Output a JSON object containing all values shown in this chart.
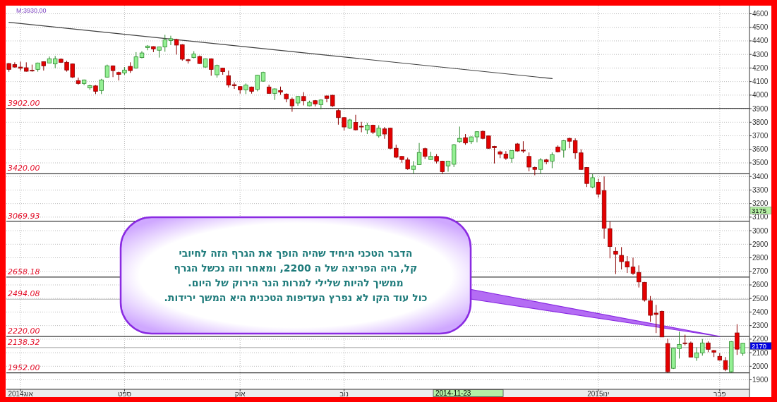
{
  "chart_data": {
    "type": "candlestick",
    "categories": [
      null,
      null,
      "אוג2014",
      null,
      null,
      null,
      null,
      null,
      null,
      null,
      null,
      null,
      null,
      null,
      null,
      null,
      null,
      null,
      null,
      null,
      "ספט",
      null,
      null,
      null,
      null,
      null,
      null,
      null,
      null,
      null,
      null,
      null,
      null,
      null,
      null,
      null,
      null,
      null,
      null,
      null,
      "אוק",
      null,
      null,
      null,
      null,
      null,
      null,
      null,
      null,
      null,
      null,
      null,
      null,
      null,
      null,
      null,
      null,
      null,
      "נוב",
      null,
      null,
      null,
      null,
      null,
      null,
      null,
      null,
      null,
      null,
      null,
      null,
      null,
      null,
      null,
      null,
      null,
      null,
      null,
      null,
      null,
      null,
      null,
      null,
      null,
      null,
      null,
      null,
      null,
      null,
      null,
      null,
      null,
      null,
      null,
      null,
      null,
      null,
      null,
      null,
      null,
      null,
      null,
      "ינו2015",
      null,
      null,
      null,
      null,
      null,
      null,
      null,
      null,
      null,
      null,
      null,
      null,
      null,
      null,
      null,
      null,
      null,
      null,
      null,
      null,
      "פבר",
      null,
      null,
      null,
      null
    ],
    "ohlc": [
      [
        4233,
        4237,
        4172,
        4190
      ],
      [
        4225,
        4242,
        4202,
        4207
      ],
      [
        4207,
        4247,
        4181,
        4198
      ],
      [
        4202,
        4242,
        4173,
        4176
      ],
      [
        4183,
        4225,
        4173,
        4178
      ],
      [
        4190,
        4240,
        4173,
        4237
      ],
      [
        4247,
        4249,
        4181,
        4216
      ],
      [
        4237,
        4285,
        4235,
        4268
      ],
      [
        4230,
        4289,
        4199,
        4268
      ],
      [
        4265,
        4271,
        4237,
        4242
      ],
      [
        4242,
        4254,
        4173,
        4185
      ],
      [
        4230,
        4232,
        4126,
        4133
      ],
      [
        4107,
        4129,
        4077,
        4086
      ],
      [
        4086,
        4115,
        4074,
        4112
      ],
      [
        4053,
        4077,
        4039,
        4070
      ],
      [
        4068,
        4074,
        4008,
        4028
      ],
      [
        4034,
        4120,
        4008,
        4112
      ],
      [
        4133,
        4225,
        4129,
        4216
      ],
      [
        4216,
        4219,
        4133,
        4181
      ],
      [
        4167,
        4173,
        4108,
        4153
      ],
      [
        4164,
        4207,
        4150,
        4185
      ],
      [
        4212,
        4242,
        4164,
        4181
      ],
      [
        4199,
        4317,
        4195,
        4282
      ],
      [
        4277,
        4324,
        4271,
        4311
      ],
      [
        4351,
        4369,
        4331,
        4362
      ],
      [
        4358,
        4360,
        4317,
        4341
      ],
      [
        4331,
        4358,
        4277,
        4355
      ],
      [
        4355,
        4445,
        4320,
        4407
      ],
      [
        4403,
        4438,
        4369,
        4416
      ],
      [
        4410,
        4416,
        4299,
        4369
      ],
      [
        4372,
        4376,
        4254,
        4265
      ],
      [
        4261,
        4268,
        4233,
        4254
      ],
      [
        4277,
        4324,
        4271,
        4303
      ],
      [
        4285,
        4292,
        4230,
        4233
      ],
      [
        4207,
        4271,
        4202,
        4268
      ],
      [
        4268,
        4271,
        4143,
        4190
      ],
      [
        4150,
        4225,
        4129,
        4219
      ],
      [
        4199,
        4202,
        4150,
        4173
      ],
      [
        4143,
        4181,
        4056,
        4074
      ],
      [
        4077,
        4094,
        4046,
        4070
      ],
      [
        4063,
        4065,
        4011,
        4039
      ],
      [
        4039,
        4086,
        4008,
        4074
      ],
      [
        4060,
        4063,
        4011,
        4028
      ],
      [
        4042,
        4150,
        4028,
        4147
      ],
      [
        4103,
        4173,
        4098,
        4167
      ],
      [
        4060,
        4077,
        4011,
        4013
      ],
      [
        4013,
        4049,
        3964,
        4046
      ],
      [
        4034,
        4063,
        4002,
        4022
      ],
      [
        4008,
        4013,
        3947,
        3973
      ],
      [
        3969,
        3982,
        3877,
        3921
      ],
      [
        3942,
        3994,
        3921,
        3990
      ],
      [
        3990,
        4022,
        3924,
        3959
      ],
      [
        3921,
        3959,
        3917,
        3947
      ],
      [
        3959,
        3964,
        3917,
        3935
      ],
      [
        3930,
        3969,
        3895,
        3964
      ],
      [
        3994,
        3997,
        3947,
        3976
      ],
      [
        3999,
        4002,
        3912,
        3921
      ],
      [
        3886,
        3895,
        3782,
        3834
      ],
      [
        3834,
        3837,
        3739,
        3765
      ],
      [
        3756,
        3825,
        3751,
        3817
      ],
      [
        3799,
        3855,
        3739,
        3744
      ],
      [
        3770,
        3803,
        3726,
        3765
      ],
      [
        3744,
        3796,
        3713,
        3778
      ],
      [
        3778,
        3782,
        3713,
        3726
      ],
      [
        3699,
        3778,
        3686,
        3756
      ],
      [
        3751,
        3765,
        3678,
        3713
      ],
      [
        3756,
        3759,
        3600,
        3608
      ],
      [
        3608,
        3634,
        3535,
        3542
      ],
      [
        3548,
        3550,
        3501,
        3525
      ],
      [
        3522,
        3539,
        3449,
        3456
      ],
      [
        3452,
        3513,
        3421,
        3478
      ],
      [
        3487,
        3647,
        3484,
        3577
      ],
      [
        3605,
        3612,
        3530,
        3548
      ],
      [
        3525,
        3582,
        3522,
        3548
      ],
      [
        3548,
        3565,
        3496,
        3513
      ],
      [
        3513,
        3516,
        3417,
        3435
      ],
      [
        3478,
        3516,
        3435,
        3513
      ],
      [
        3490,
        3640,
        3469,
        3634
      ],
      [
        3657,
        3768,
        3647,
        3681
      ],
      [
        3686,
        3713,
        3634,
        3647
      ],
      [
        3657,
        3695,
        3640,
        3692
      ],
      [
        3692,
        3733,
        3652,
        3730
      ],
      [
        3733,
        3739,
        3674,
        3681
      ],
      [
        3699,
        3702,
        3603,
        3608
      ],
      [
        3622,
        3626,
        3496,
        3612
      ],
      [
        3582,
        3591,
        3535,
        3565
      ],
      [
        3565,
        3587,
        3522,
        3535
      ],
      [
        3535,
        3591,
        3501,
        3591
      ],
      [
        3640,
        3647,
        3582,
        3588
      ],
      [
        3594,
        3660,
        3574,
        3588
      ],
      [
        3548,
        3577,
        3438,
        3469
      ],
      [
        3466,
        3473,
        3409,
        3452
      ],
      [
        3452,
        3535,
        3421,
        3522
      ],
      [
        3522,
        3530,
        3490,
        3508
      ],
      [
        3513,
        3577,
        3461,
        3560
      ],
      [
        3617,
        3629,
        3577,
        3582
      ],
      [
        3594,
        3669,
        3539,
        3664
      ],
      [
        3681,
        3686,
        3608,
        3660
      ],
      [
        3664,
        3681,
        3530,
        3574
      ],
      [
        3574,
        3600,
        3449,
        3452
      ],
      [
        3466,
        3469,
        3322,
        3348
      ],
      [
        3322,
        3417,
        3313,
        3391
      ],
      [
        3357,
        3383,
        3244,
        3270
      ],
      [
        3296,
        3400,
        2940,
        3018
      ],
      [
        3015,
        3067,
        2796,
        2883
      ],
      [
        2848,
        2879,
        2680,
        2827
      ],
      [
        2818,
        2879,
        2714,
        2772
      ],
      [
        2772,
        2813,
        2688,
        2732
      ],
      [
        2732,
        2801,
        2674,
        2685
      ],
      [
        2692,
        2744,
        2581,
        2622
      ],
      [
        2619,
        2622,
        2477,
        2489
      ],
      [
        2483,
        2518,
        2328,
        2376
      ],
      [
        2392,
        2453,
        2245,
        2382
      ],
      [
        2405,
        2410,
        2216,
        2216
      ],
      [
        2168,
        2203,
        1951,
        1960
      ],
      [
        1985,
        2137,
        1980,
        2133
      ],
      [
        2130,
        2255,
        2057,
        2160
      ],
      [
        2172,
        2233,
        2154,
        2168
      ],
      [
        2172,
        2182,
        2068,
        2068
      ],
      [
        2064,
        2139,
        2040,
        2099
      ],
      [
        2099,
        2201,
        2078,
        2172
      ],
      [
        2172,
        2184,
        2104,
        2125
      ],
      [
        2116,
        2120,
        2068,
        2104
      ],
      [
        2073,
        2097,
        2042,
        2045
      ],
      [
        2042,
        2068,
        1964,
        1976
      ],
      [
        1960,
        2186,
        1951,
        2182
      ],
      [
        2246,
        2310,
        2084,
        2126
      ],
      [
        2095,
        2172,
        2077,
        2170
      ]
    ],
    "series": [
      {
        "type": "line",
        "values": [
          4537,
          null,
          null,
          null,
          null,
          null,
          null,
          null,
          null,
          null,
          null,
          null,
          null,
          null,
          null,
          null,
          null,
          null,
          null,
          null,
          null,
          null,
          null,
          null,
          null,
          null,
          null,
          null,
          null,
          null,
          null,
          null,
          null,
          null,
          null,
          null,
          null,
          null,
          null,
          null,
          null,
          null,
          null,
          null,
          null,
          null,
          null,
          null,
          null,
          null,
          null,
          null,
          null,
          null,
          null,
          null,
          null,
          null,
          null,
          null,
          null,
          null,
          null,
          null,
          null,
          null,
          null,
          null,
          null,
          null,
          null,
          null,
          null,
          null,
          null,
          null,
          null,
          null,
          null,
          null,
          null,
          null,
          null,
          null,
          null,
          null,
          null,
          null,
          null,
          null,
          null,
          null,
          null,
          null,
          4122,
          null,
          null,
          null,
          null,
          null,
          null,
          null,
          null,
          null,
          null,
          null,
          null,
          null,
          null,
          null,
          null,
          null,
          null,
          null,
          null,
          null,
          null,
          null,
          null,
          null,
          null,
          null,
          null,
          null,
          null,
          null,
          null,
          null
        ],
        "color": "#404040"
      }
    ],
    "ylim": [
      1830,
      4660
    ],
    "yticks": [
      1900,
      2000,
      2100,
      2200,
      2300,
      2400,
      2500,
      2600,
      2700,
      2800,
      2900,
      3000,
      3100,
      3200,
      3300,
      3400,
      3500,
      3600,
      3700,
      3800,
      3900,
      4000,
      4100,
      4200,
      4300,
      4400,
      4500,
      4600
    ],
    "grid": true,
    "ref_lines": [
      {
        "axis": "y",
        "value": 3902,
        "label": "3902.00",
        "color": "#3a3a3a"
      },
      {
        "axis": "y",
        "value": 3420,
        "label": "3420.00",
        "color": "#3a3a3a"
      },
      {
        "axis": "y",
        "value": 3069.93,
        "label": "3069.93",
        "color": "#3a3a3a"
      },
      {
        "axis": "y",
        "value": 2658.18,
        "label": "2658.18",
        "color": "#3a3a3a"
      },
      {
        "axis": "y",
        "value": 2494.08,
        "label": "2494.08",
        "color": "#c4c4c4"
      },
      {
        "axis": "y",
        "value": 2220,
        "label": "2220.00",
        "color": "#3a3a3a"
      },
      {
        "axis": "y",
        "value": 2138.32,
        "label": "2138.32",
        "color": "#c4c4c4"
      },
      {
        "axis": "y",
        "value": 1952,
        "label": "1952.00",
        "color": "#3a3a3a"
      }
    ],
    "annotations": [
      {
        "text": "הדבר הטכני היחיד שהיה הופך את הגרף הזה לחיובי\nקל, היה הפריצה של ה 2200, ומאחר וזה נכשל הגרף\nממשיך להיות שלילי למרות הנר הירוק של היום.\nכול עוד הקו לא נפרץ העדיפות הטכנית היא המשך ירידות.",
        "x": "פבר",
        "y": 2220
      },
      "2014-11-23",
      "3175",
      "2170",
      "M:3930.00"
    ]
  }
}
